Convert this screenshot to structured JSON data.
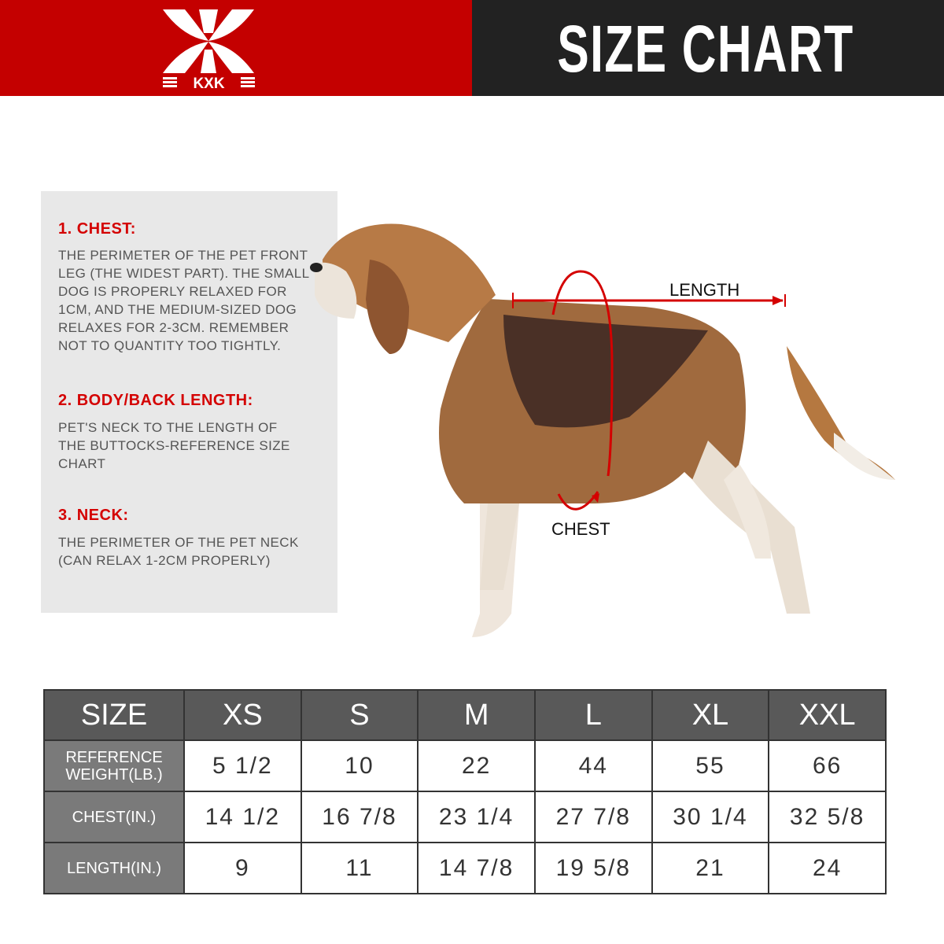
{
  "brand": {
    "logo_text": "KXK",
    "color": "#c40000"
  },
  "header": {
    "title": "SIZE CHART"
  },
  "guide": [
    {
      "heading": "1. CHEST:",
      "text": "THE PERIMETER OF THE PET FRONT\nLEG (THE WIDEST PART). THE SMALL\nDOG IS PROPERLY RELAXED FOR\n1CM, AND THE MEDIUM-SIZED DOG\nRELAXES FOR 2-3CM. REMEMBER\nNOT TO QUANTITY TOO TIGHTLY."
    },
    {
      "heading": "2. BODY/BACK LENGTH:",
      "text": "PET'S NECK TO THE LENGTH OF\nTHE BUTTOCKS-REFERENCE SIZE\nCHART"
    },
    {
      "heading": "3. NECK:",
      "text": "THE PERIMETER OF THE PET NECK\n (CAN RELAX 1-2CM PROPERLY)"
    }
  ],
  "diagram": {
    "length_label": "LENGTH",
    "chest_label": "CHEST"
  },
  "table": {
    "headers": [
      "SIZE",
      "XS",
      "S",
      "M",
      "L",
      "XL",
      "XXL"
    ],
    "rows": [
      {
        "label": "REFERENCE WEIGHT(LB.)",
        "values": [
          "5 1/2",
          "10",
          "22",
          "44",
          "55",
          "66"
        ]
      },
      {
        "label": "CHEST(IN.)",
        "values": [
          "14 1/2",
          "16 7/8",
          "23 1/4",
          "27 7/8",
          "30 1/4",
          "32 5/8"
        ]
      },
      {
        "label": "LENGTH(IN.)",
        "values": [
          "9",
          "11",
          "14 7/8",
          "19 5/8",
          "21",
          "24"
        ]
      }
    ]
  }
}
